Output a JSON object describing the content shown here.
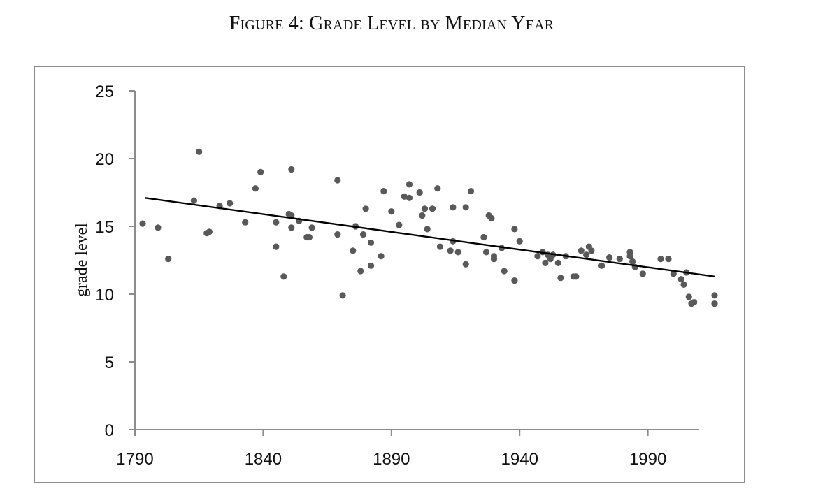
{
  "figure": {
    "title": "Figure 4: Grade Level by Median Year"
  },
  "chart_data": {
    "type": "scatter",
    "title": "Figure 4: Grade Level by Median Year",
    "xlabel": "",
    "ylabel": "grade level",
    "xlim": [
      1790,
      2010
    ],
    "ylim": [
      0,
      25
    ],
    "xticks": [
      1790,
      1840,
      1890,
      1940,
      1990
    ],
    "yticks": [
      0,
      5,
      10,
      15,
      20,
      25
    ],
    "grid": false,
    "legend": "none",
    "point_color": "#595959",
    "line_color": "#000000",
    "axis_color": "#8c8c8c",
    "series": [
      {
        "points": [
          [
            1793,
            15.2
          ],
          [
            1799,
            14.9
          ],
          [
            1803,
            12.6
          ],
          [
            1813,
            16.9
          ],
          [
            1815,
            20.5
          ],
          [
            1818,
            14.5
          ],
          [
            1819,
            14.6
          ],
          [
            1823,
            16.5
          ],
          [
            1827,
            16.7
          ],
          [
            1833,
            15.3
          ],
          [
            1837,
            17.8
          ],
          [
            1839,
            19.0
          ],
          [
            1845,
            15.3
          ],
          [
            1845,
            13.5
          ],
          [
            1848,
            11.3
          ],
          [
            1850,
            15.9
          ],
          [
            1851,
            15.8
          ],
          [
            1851,
            19.2
          ],
          [
            1851,
            14.9
          ],
          [
            1854,
            15.4
          ],
          [
            1857,
            14.2
          ],
          [
            1858,
            14.2
          ],
          [
            1859,
            14.9
          ],
          [
            1869,
            18.4
          ],
          [
            1869,
            14.4
          ],
          [
            1871,
            9.9
          ],
          [
            1875,
            13.2
          ],
          [
            1876,
            15.0
          ],
          [
            1878,
            11.7
          ],
          [
            1879,
            14.4
          ],
          [
            1880,
            16.3
          ],
          [
            1882,
            12.1
          ],
          [
            1882,
            13.8
          ],
          [
            1886,
            12.8
          ],
          [
            1887,
            17.6
          ],
          [
            1890,
            16.1
          ],
          [
            1893,
            15.1
          ],
          [
            1895,
            17.2
          ],
          [
            1897,
            17.1
          ],
          [
            1897,
            18.1
          ],
          [
            1901,
            17.5
          ],
          [
            1902,
            15.8
          ],
          [
            1903,
            16.3
          ],
          [
            1904,
            14.8
          ],
          [
            1906,
            16.3
          ],
          [
            1908,
            17.8
          ],
          [
            1909,
            13.5
          ],
          [
            1913,
            13.2
          ],
          [
            1914,
            13.9
          ],
          [
            1914,
            16.4
          ],
          [
            1916,
            13.1
          ],
          [
            1919,
            12.2
          ],
          [
            1919,
            16.4
          ],
          [
            1921,
            17.6
          ],
          [
            1926,
            14.2
          ],
          [
            1927,
            13.1
          ],
          [
            1928,
            15.8
          ],
          [
            1929,
            15.6
          ],
          [
            1930,
            12.6
          ],
          [
            1930,
            12.8
          ],
          [
            1933,
            13.4
          ],
          [
            1934,
            11.7
          ],
          [
            1938,
            11.0
          ],
          [
            1938,
            14.8
          ],
          [
            1940,
            13.9
          ],
          [
            1947,
            12.8
          ],
          [
            1949,
            13.1
          ],
          [
            1950,
            12.3
          ],
          [
            1951,
            12.9
          ],
          [
            1952,
            12.6
          ],
          [
            1953,
            12.9
          ],
          [
            1955,
            12.3
          ],
          [
            1956,
            11.2
          ],
          [
            1958,
            12.8
          ],
          [
            1961,
            11.3
          ],
          [
            1962,
            11.3
          ],
          [
            1964,
            13.2
          ],
          [
            1966,
            12.9
          ],
          [
            1967,
            13.5
          ],
          [
            1968,
            13.2
          ],
          [
            1972,
            12.1
          ],
          [
            1975,
            12.7
          ],
          [
            1979,
            12.6
          ],
          [
            1983,
            12.8
          ],
          [
            1983,
            13.1
          ],
          [
            1984,
            12.4
          ],
          [
            1985,
            12.0
          ],
          [
            1988,
            11.5
          ],
          [
            1995,
            12.6
          ],
          [
            1998,
            12.6
          ],
          [
            2000,
            11.5
          ],
          [
            2003,
            11.1
          ],
          [
            2004,
            10.7
          ],
          [
            2005,
            11.6
          ],
          [
            2006,
            9.8
          ],
          [
            2007,
            9.3
          ],
          [
            2008,
            9.4
          ],
          [
            2016,
            9.3
          ],
          [
            2016,
            9.9
          ]
        ]
      }
    ],
    "trendline": {
      "x": [
        1794,
        2016
      ],
      "y": [
        17.1,
        11.3
      ]
    }
  }
}
